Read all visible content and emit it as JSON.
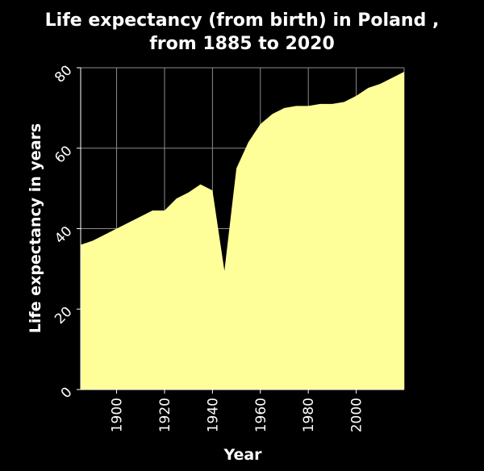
{
  "chart_data": {
    "type": "area",
    "title_lines": [
      "Life expectancy (from birth) in Poland ,",
      "from 1885 to 2020"
    ],
    "xlabel": "Year",
    "ylabel": "Life expectancy in years",
    "xlim": [
      1885,
      2020
    ],
    "ylim": [
      0,
      80
    ],
    "x_ticks": [
      1900,
      1920,
      1940,
      1960,
      1980,
      2000
    ],
    "y_ticks": [
      0,
      20,
      40,
      60,
      80
    ],
    "grid": true,
    "colors": {
      "background": "#000000",
      "plot_background": "#000000",
      "area_fill": "#ffff99",
      "grid": "#8c8c8c",
      "text": "#ffffff"
    },
    "x": [
      1885,
      1890,
      1895,
      1900,
      1905,
      1910,
      1915,
      1920,
      1925,
      1930,
      1935,
      1940,
      1945,
      1950,
      1955,
      1960,
      1965,
      1970,
      1975,
      1980,
      1985,
      1990,
      1995,
      2000,
      2005,
      2010,
      2015,
      2020
    ],
    "y": [
      36,
      37,
      38.5,
      40,
      41.5,
      43,
      44.5,
      44.5,
      47.5,
      49,
      51,
      49.5,
      29.5,
      55,
      61.5,
      66,
      68.5,
      70,
      70.5,
      70.5,
      71,
      71,
      71.5,
      73,
      75,
      76,
      77.5,
      79
    ]
  }
}
